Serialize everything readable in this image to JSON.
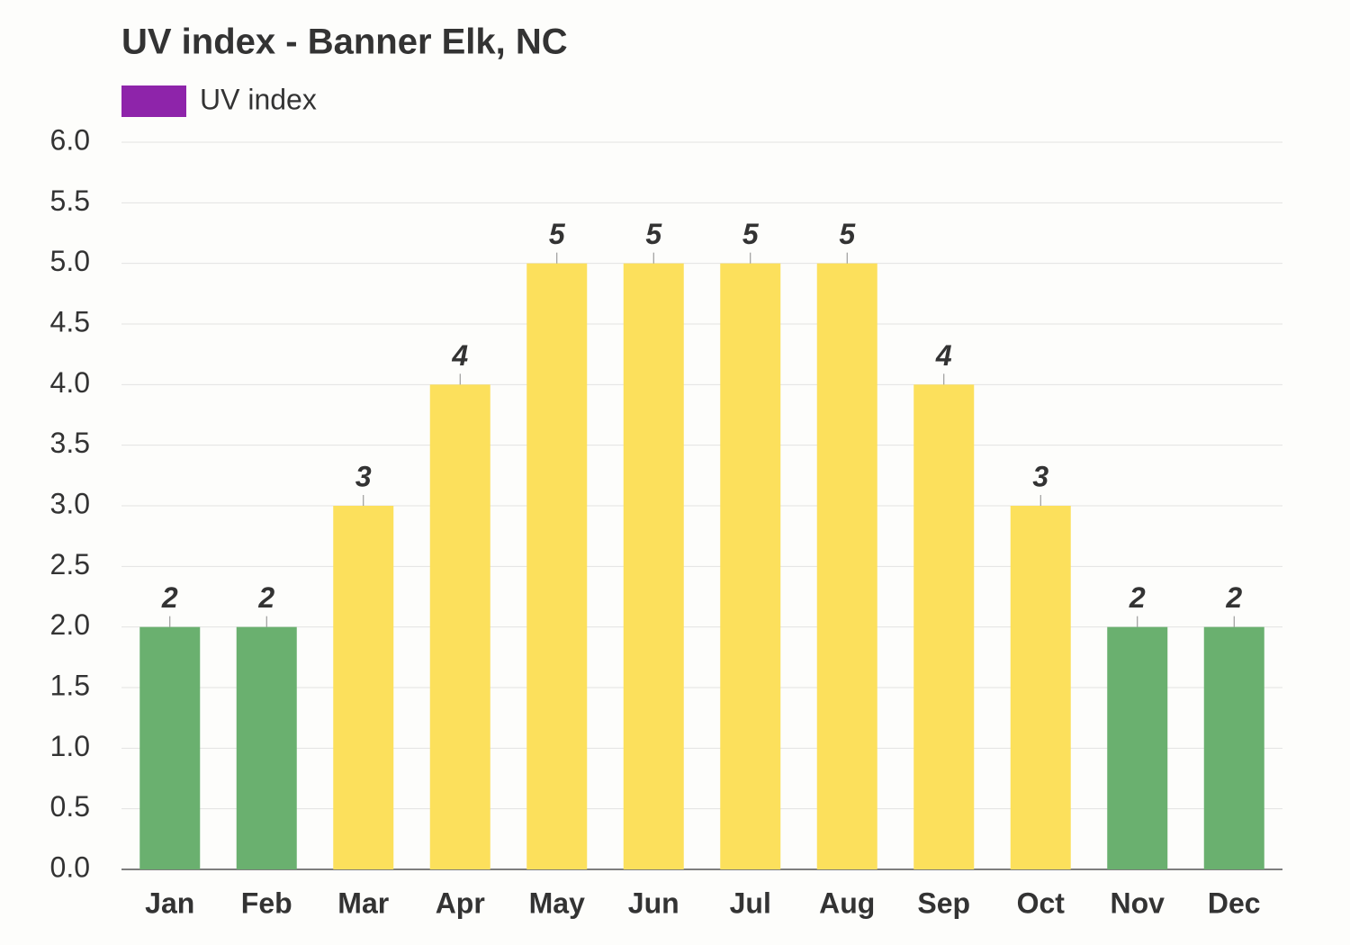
{
  "chart_data": {
    "type": "bar",
    "title": "UV index - Banner Elk, NC",
    "categories": [
      "Jan",
      "Feb",
      "Mar",
      "Apr",
      "May",
      "Jun",
      "Jul",
      "Aug",
      "Sep",
      "Oct",
      "Nov",
      "Dec"
    ],
    "series": [
      {
        "name": "UV index",
        "color": "#8e24aa",
        "values": [
          2,
          2,
          3,
          4,
          5,
          5,
          5,
          5,
          4,
          3,
          2,
          2
        ],
        "bar_colors": [
          "#6ab06f",
          "#6ab06f",
          "#fce05c",
          "#fce05c",
          "#fce05c",
          "#fce05c",
          "#fce05c",
          "#fce05c",
          "#fce05c",
          "#fce05c",
          "#6ab06f",
          "#6ab06f"
        ],
        "label_colors": [
          "#2e6b33",
          "#2e6b33",
          "#a8912a",
          "#a8912a",
          "#a8912a",
          "#a8912a",
          "#a8912a",
          "#a8912a",
          "#a8912a",
          "#a8912a",
          "#2e6b33",
          "#2e6b33"
        ]
      }
    ],
    "ylim": [
      0,
      6
    ],
    "yticks": [
      {
        "value": 0,
        "label": "0.0"
      },
      0.5,
      {
        "value": 1,
        "label": "1.0"
      },
      1.5,
      {
        "value": 2,
        "label": "2.0"
      },
      2.5,
      {
        "value": 3,
        "label": "3.0"
      },
      3.5,
      {
        "value": 4,
        "label": "4.0"
      },
      4.5,
      {
        "value": 5,
        "label": "5.0"
      },
      5.5,
      {
        "value": 6,
        "label": "6.0"
      }
    ],
    "grid": true
  }
}
